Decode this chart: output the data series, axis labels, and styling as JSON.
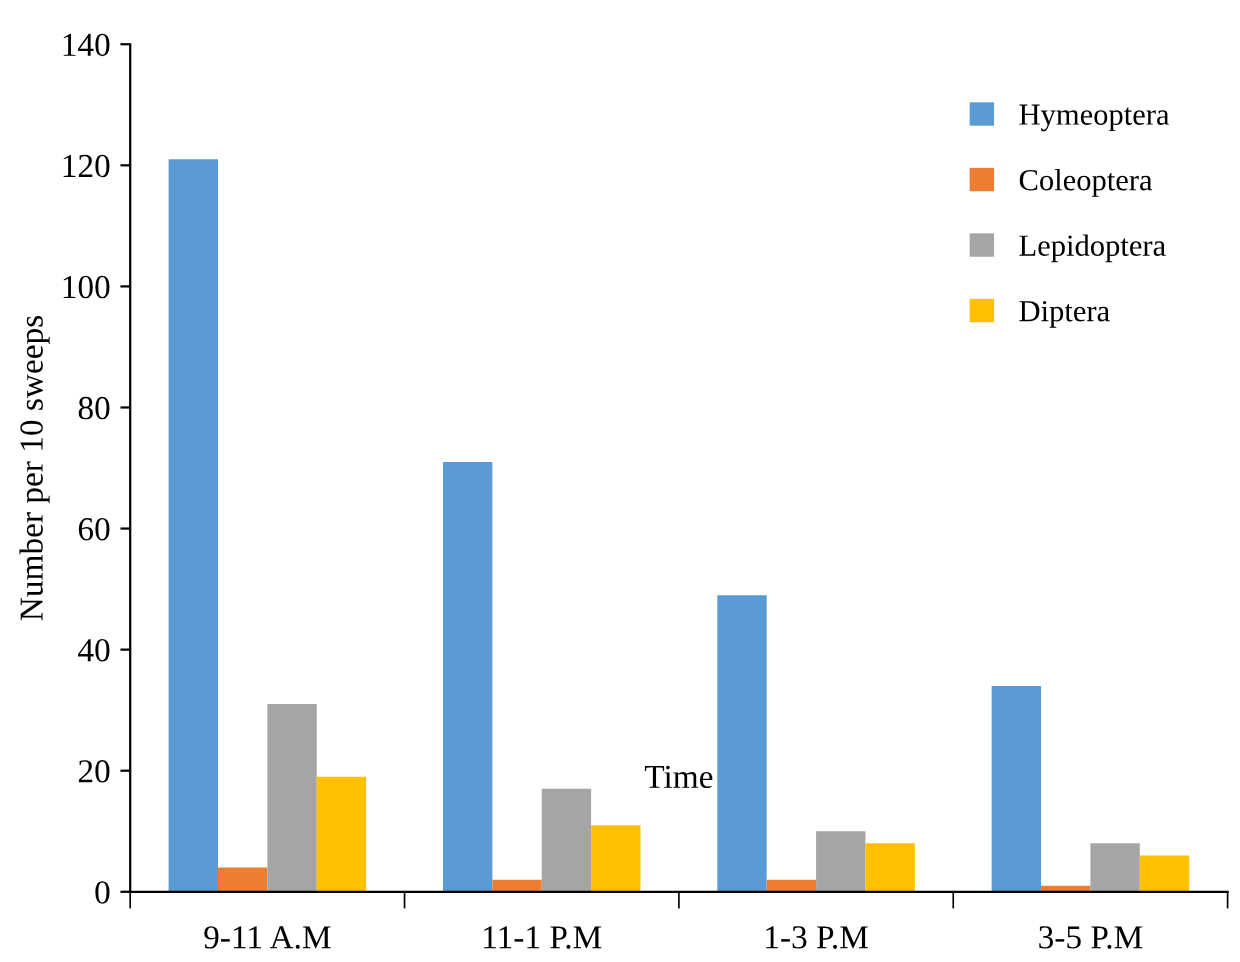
{
  "chart_data": {
    "type": "bar",
    "xlabel": "Time",
    "ylabel": "Number per 10 sweeps",
    "categories": [
      "9-11 A.M",
      "11-1 P.M",
      "1-3 P.M",
      "3-5 P.M"
    ],
    "series": [
      {
        "name": "Hymeoptera",
        "color": "#5b9bd5",
        "values": [
          121,
          71,
          49,
          34
        ]
      },
      {
        "name": "Coleoptera",
        "color": "#ed7d31",
        "values": [
          4,
          2,
          2,
          1
        ]
      },
      {
        "name": "Lepidoptera",
        "color": "#a5a5a5",
        "values": [
          31,
          17,
          10,
          8
        ]
      },
      {
        "name": "Diptera",
        "color": "#ffc000",
        "values": [
          19,
          11,
          8,
          6
        ]
      }
    ],
    "ylim": [
      0,
      140
    ],
    "yticks": [
      0,
      20,
      40,
      60,
      80,
      100,
      120,
      140
    ],
    "grid": false,
    "legend": "top right"
  }
}
